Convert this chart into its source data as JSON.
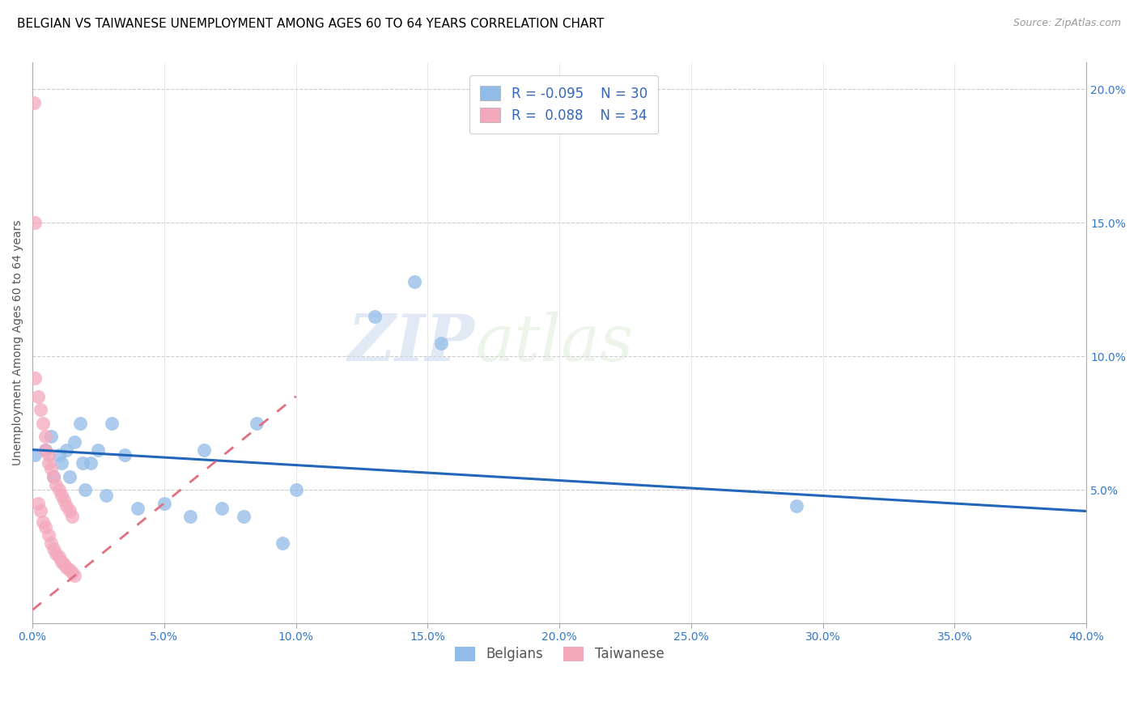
{
  "title": "BELGIAN VS TAIWANESE UNEMPLOYMENT AMONG AGES 60 TO 64 YEARS CORRELATION CHART",
  "source": "Source: ZipAtlas.com",
  "ylabel_label": "Unemployment Among Ages 60 to 64 years",
  "watermark_zip": "ZIP",
  "watermark_atlas": "atlas",
  "xlim": [
    0.0,
    0.4
  ],
  "ylim": [
    0.0,
    0.21
  ],
  "x_ticks": [
    0.0,
    0.05,
    0.1,
    0.15,
    0.2,
    0.25,
    0.3,
    0.35,
    0.4
  ],
  "y_ticks_right": [
    0.0,
    0.05,
    0.1,
    0.15,
    0.2
  ],
  "blue_color": "#92bce8",
  "pink_color": "#f4a8bc",
  "blue_line_color": "#2266bb",
  "pink_line_color": "#e07080",
  "legend_R_blue": "-0.095",
  "legend_N_blue": "30",
  "legend_R_pink": "0.088",
  "legend_N_pink": "34",
  "belgians_x": [
    0.001,
    0.005,
    0.007,
    0.008,
    0.01,
    0.011,
    0.013,
    0.014,
    0.016,
    0.018,
    0.019,
    0.02,
    0.022,
    0.025,
    0.028,
    0.03,
    0.035,
    0.04,
    0.05,
    0.06,
    0.065,
    0.072,
    0.08,
    0.085,
    0.095,
    0.1,
    0.13,
    0.145,
    0.155,
    0.29
  ],
  "belgians_y": [
    0.063,
    0.065,
    0.07,
    0.055,
    0.063,
    0.06,
    0.065,
    0.055,
    0.068,
    0.075,
    0.06,
    0.05,
    0.06,
    0.065,
    0.048,
    0.075,
    0.063,
    0.043,
    0.045,
    0.04,
    0.065,
    0.043,
    0.04,
    0.075,
    0.03,
    0.05,
    0.115,
    0.128,
    0.105,
    0.044
  ],
  "taiwanese_x": [
    0.0005,
    0.001,
    0.001,
    0.002,
    0.002,
    0.003,
    0.003,
    0.004,
    0.004,
    0.005,
    0.005,
    0.005,
    0.006,
    0.006,
    0.006,
    0.007,
    0.007,
    0.008,
    0.008,
    0.009,
    0.009,
    0.01,
    0.01,
    0.011,
    0.011,
    0.012,
    0.012,
    0.013,
    0.013,
    0.014,
    0.014,
    0.015,
    0.015,
    0.016
  ],
  "taiwanese_y": [
    0.195,
    0.15,
    0.092,
    0.085,
    0.045,
    0.08,
    0.042,
    0.075,
    0.038,
    0.07,
    0.065,
    0.036,
    0.063,
    0.06,
    0.033,
    0.058,
    0.03,
    0.055,
    0.028,
    0.052,
    0.026,
    0.05,
    0.025,
    0.048,
    0.023,
    0.046,
    0.022,
    0.044,
    0.021,
    0.042,
    0.02,
    0.04,
    0.019,
    0.018
  ],
  "blue_trendline_x": [
    0.0,
    0.4
  ],
  "blue_trendline_y": [
    0.065,
    0.042
  ],
  "pink_trendline_x": [
    0.0,
    0.1
  ],
  "pink_trendline_y": [
    0.005,
    0.085
  ],
  "title_fontsize": 11,
  "axis_fontsize": 10,
  "tick_fontsize": 10
}
